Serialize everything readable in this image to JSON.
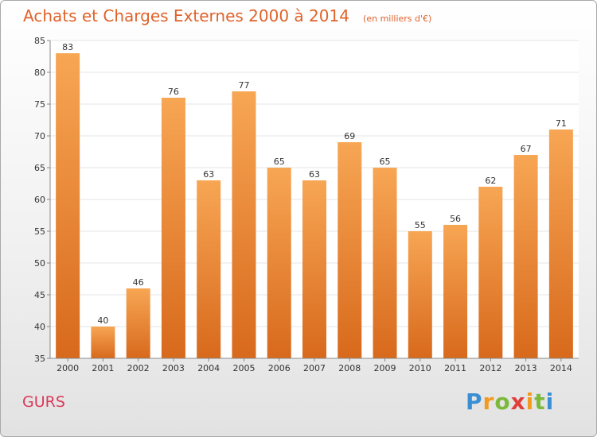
{
  "header": {
    "title": "Achats et Charges Externes 2000 à 2014",
    "subtitle": "(en milliers d'€)"
  },
  "footer": {
    "location": "GURS",
    "brand": "Proxiti"
  },
  "colors": {
    "title": "#e0622a",
    "bar_top": "#f7a654",
    "bar_bottom": "#d8691c",
    "location": "#d93a5a"
  },
  "chart_data": {
    "type": "bar",
    "title": "Achats et Charges Externes 2000 à 2014",
    "subtitle": "(en milliers d'€)",
    "xlabel": "",
    "ylabel": "",
    "ylim": [
      35,
      85
    ],
    "yticks": [
      35,
      40,
      45,
      50,
      55,
      60,
      65,
      70,
      75,
      80,
      85
    ],
    "grid": true,
    "categories": [
      "2000",
      "2001",
      "2002",
      "2003",
      "2004",
      "2005",
      "2006",
      "2007",
      "2008",
      "2009",
      "2010",
      "2011",
      "2012",
      "2013",
      "2014"
    ],
    "values": [
      83,
      40,
      46,
      76,
      63,
      77,
      65,
      63,
      69,
      65,
      55,
      56,
      62,
      67,
      71
    ]
  }
}
